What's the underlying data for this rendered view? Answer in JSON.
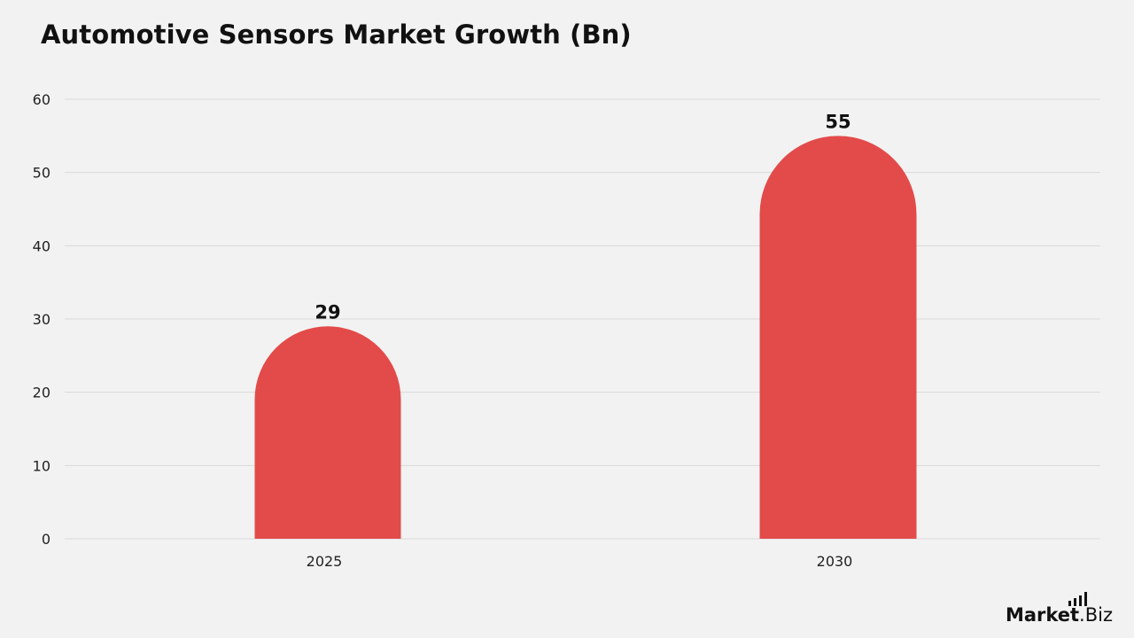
{
  "chart_data": {
    "type": "bar",
    "title": "Automotive Sensors Market Growth (Bn)",
    "categories": [
      "2025",
      "2030"
    ],
    "values": [
      29,
      55
    ],
    "data_labels": [
      "29",
      "55"
    ],
    "xlabel": "",
    "ylabel": "",
    "ylim": [
      0,
      60
    ],
    "yticks": [
      "0",
      "10",
      "20",
      "30",
      "40",
      "50",
      "60"
    ],
    "grid": true,
    "bar_color": "#e24b4a",
    "bar_shape": "rounded-top"
  },
  "brand": {
    "main": "Market",
    "tld": ".Biz",
    "icon": "bar-chart-icon"
  }
}
